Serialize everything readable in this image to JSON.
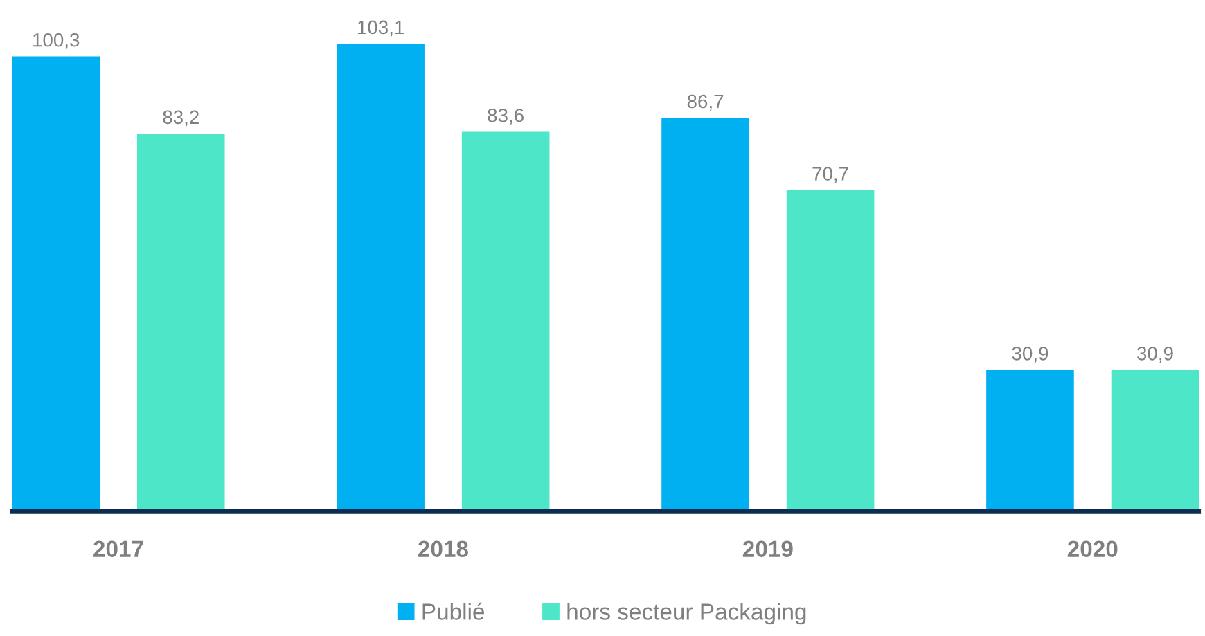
{
  "chart_data": {
    "type": "bar",
    "categories": [
      "2017",
      "2018",
      "2019",
      "2020"
    ],
    "series": [
      {
        "name": "Publié",
        "color": "#00b0f0",
        "values": [
          100.3,
          103.1,
          86.7,
          30.9
        ],
        "value_labels": [
          "100,3",
          "103,1",
          "86,7",
          "30,9"
        ]
      },
      {
        "name": "hors secteur Packaging",
        "color": "#4ee6c8",
        "values": [
          83.2,
          83.6,
          70.7,
          30.9
        ],
        "value_labels": [
          "83,2",
          "83,6",
          "70,7",
          "30,9"
        ]
      }
    ],
    "legend": "bottom",
    "grid": false
  }
}
